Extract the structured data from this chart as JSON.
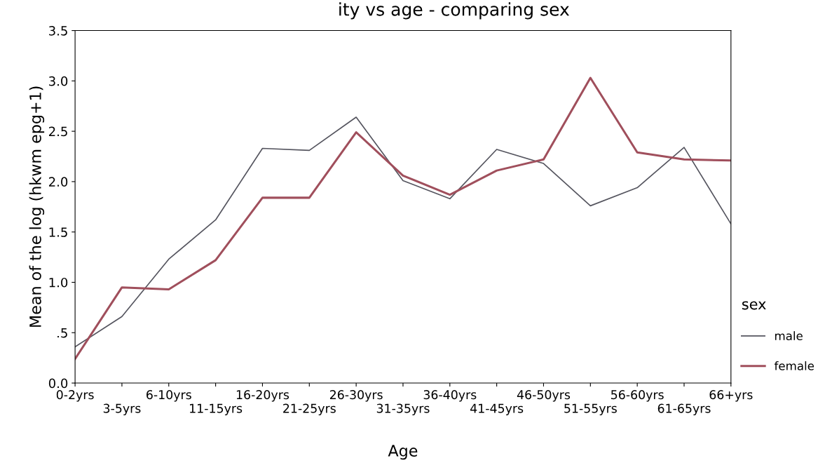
{
  "chart_data": {
    "type": "line",
    "title": "ity vs age - comparing sex",
    "xlabel": "Age",
    "ylabel": "Mean of the log (hkwm epg+1)",
    "legend_title": "sex",
    "categories": [
      "0-2yrs",
      "3-5yrs",
      "6-10yrs",
      "11-15yrs",
      "16-20yrs",
      "21-25yrs",
      "26-30yrs",
      "31-35yrs",
      "36-40yrs",
      "41-45yrs",
      "46-50yrs",
      "51-55yrs",
      "56-60yrs",
      "61-65yrs",
      "66+yrs"
    ],
    "series": [
      {
        "name": "male",
        "color": "#55555f",
        "values": [
          0.36,
          0.66,
          1.23,
          1.62,
          2.33,
          2.31,
          2.64,
          2.01,
          1.83,
          2.32,
          2.18,
          1.76,
          1.94,
          2.34,
          1.58
        ]
      },
      {
        "name": "female",
        "color": "#a04f5c",
        "values": [
          0.24,
          0.95,
          0.93,
          1.22,
          1.84,
          1.84,
          2.49,
          2.06,
          1.87,
          2.11,
          2.22,
          3.03,
          2.29,
          2.22,
          2.21
        ]
      }
    ],
    "ylim": [
      0,
      3.5
    ],
    "yticks": [
      {
        "value": 0,
        "label": "0.0"
      },
      {
        "value": 0.5,
        "label": ".5"
      },
      {
        "value": 1,
        "label": "1.0"
      },
      {
        "value": 1.5,
        "label": "1.5"
      },
      {
        "value": 2,
        "label": "2.0"
      },
      {
        "value": 2.5,
        "label": "2.5"
      },
      {
        "value": 3,
        "label": "3.0"
      },
      {
        "value": 3.5,
        "label": "3.5"
      }
    ],
    "grid": false,
    "legend": "right",
    "marker": "none",
    "line_style": "solid"
  }
}
